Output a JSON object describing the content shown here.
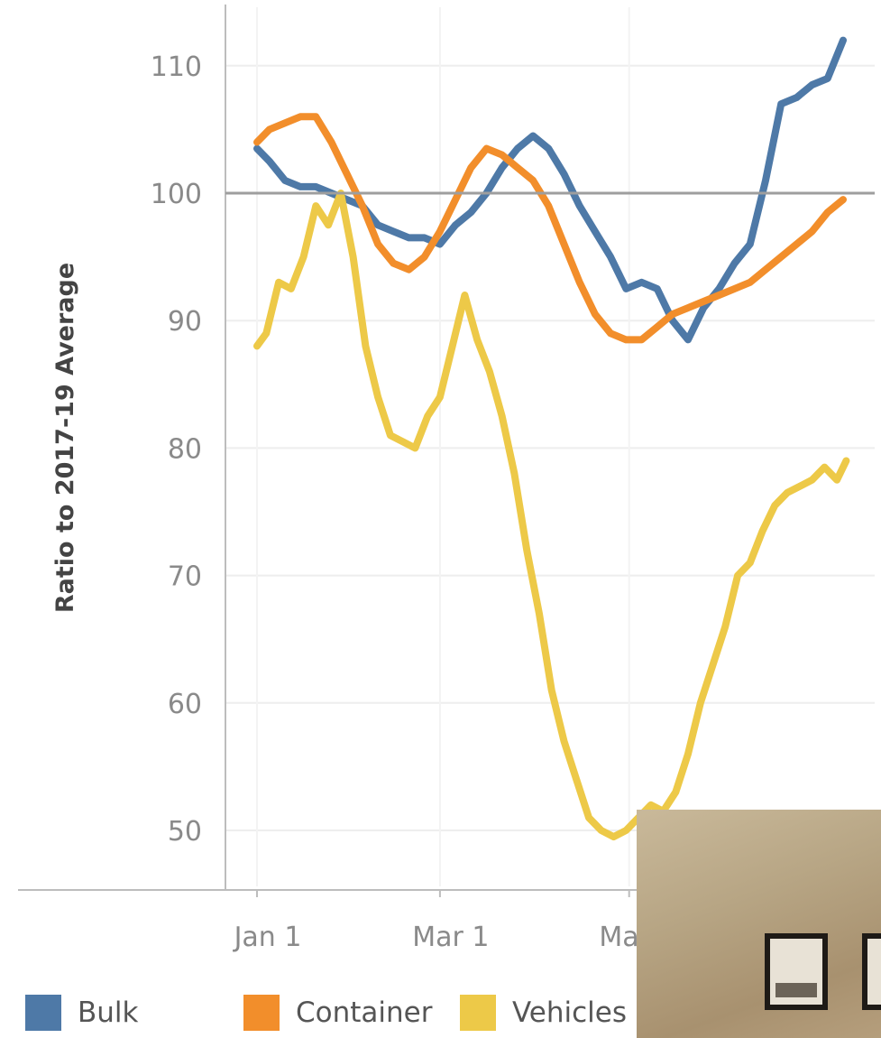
{
  "chart_data": {
    "type": "line",
    "title": "",
    "xlabel": "",
    "ylabel": "Ratio to 2017-19 Average",
    "ylim": [
      45,
      116
    ],
    "yticks": [
      50,
      60,
      70,
      80,
      90,
      100,
      110
    ],
    "x_tick_labels": [
      "Jan 1",
      "Mar 1",
      "May 1"
    ],
    "x_tick_dates": [
      "2021-01-01",
      "2021-03-01",
      "2021-05-01"
    ],
    "x_range": [
      "2020-12-25",
      "2021-07-15"
    ],
    "reference_line": 100,
    "grid": true,
    "legend_position": "bottom",
    "series": [
      {
        "name": "Bulk",
        "color": "#4e79a7",
        "x": [
          "2021-01-01",
          "2021-01-05",
          "2021-01-10",
          "2021-01-15",
          "2021-01-20",
          "2021-01-25",
          "2021-01-30",
          "2021-02-04",
          "2021-02-09",
          "2021-02-14",
          "2021-02-19",
          "2021-02-24",
          "2021-03-01",
          "2021-03-06",
          "2021-03-11",
          "2021-03-16",
          "2021-03-21",
          "2021-03-26",
          "2021-03-31",
          "2021-04-05",
          "2021-04-10",
          "2021-04-15",
          "2021-04-20",
          "2021-04-25",
          "2021-04-30",
          "2021-05-05",
          "2021-05-10",
          "2021-05-15",
          "2021-05-20",
          "2021-05-25",
          "2021-05-30",
          "2021-06-04",
          "2021-06-09",
          "2021-06-14",
          "2021-06-19",
          "2021-06-24",
          "2021-06-29",
          "2021-07-04",
          "2021-07-09"
        ],
        "values": [
          103.5,
          102.5,
          101,
          100.5,
          100.5,
          100,
          99.5,
          99,
          97.5,
          97,
          96.5,
          96.5,
          96,
          97.5,
          98.5,
          100,
          102,
          103.5,
          104.5,
          103.5,
          101.5,
          99,
          97,
          95,
          92.5,
          93,
          92.5,
          90,
          88.5,
          91,
          92.5,
          94.5,
          96,
          101,
          107,
          107.5,
          108.5,
          109,
          112
        ]
      },
      {
        "name": "Container",
        "color": "#f28e2b",
        "x": [
          "2021-01-01",
          "2021-01-05",
          "2021-01-10",
          "2021-01-15",
          "2021-01-20",
          "2021-01-25",
          "2021-01-30",
          "2021-02-04",
          "2021-02-09",
          "2021-02-14",
          "2021-02-19",
          "2021-02-24",
          "2021-03-01",
          "2021-03-06",
          "2021-03-11",
          "2021-03-16",
          "2021-03-21",
          "2021-03-26",
          "2021-03-31",
          "2021-04-05",
          "2021-04-10",
          "2021-04-15",
          "2021-04-20",
          "2021-04-25",
          "2021-04-30",
          "2021-05-05",
          "2021-05-10",
          "2021-05-15",
          "2021-05-20",
          "2021-05-25",
          "2021-05-30",
          "2021-06-04",
          "2021-06-09",
          "2021-06-14",
          "2021-06-19",
          "2021-06-24",
          "2021-06-29",
          "2021-07-04",
          "2021-07-09"
        ],
        "values": [
          104,
          105,
          105.5,
          106,
          106,
          104,
          101.5,
          99,
          96,
          94.5,
          94,
          95,
          97,
          99.5,
          102,
          103.5,
          103,
          102,
          101,
          99,
          96,
          93,
          90.5,
          89,
          88.5,
          88.5,
          89.5,
          90.5,
          91,
          91.5,
          92,
          92.5,
          93,
          94,
          95,
          96,
          97,
          98.5,
          99.5
        ]
      },
      {
        "name": "Vehicles",
        "color": "#edc948",
        "x": [
          "2021-01-01",
          "2021-01-04",
          "2021-01-08",
          "2021-01-12",
          "2021-01-16",
          "2021-01-20",
          "2021-01-24",
          "2021-01-28",
          "2021-02-01",
          "2021-02-05",
          "2021-02-09",
          "2021-02-13",
          "2021-02-17",
          "2021-02-21",
          "2021-02-25",
          "2021-03-01",
          "2021-03-05",
          "2021-03-09",
          "2021-03-13",
          "2021-03-17",
          "2021-03-21",
          "2021-03-25",
          "2021-03-29",
          "2021-04-02",
          "2021-04-06",
          "2021-04-10",
          "2021-04-14",
          "2021-04-18",
          "2021-04-22",
          "2021-04-26",
          "2021-04-30",
          "2021-05-04",
          "2021-05-08",
          "2021-05-12",
          "2021-05-16",
          "2021-05-20",
          "2021-05-24",
          "2021-05-28",
          "2021-06-01",
          "2021-06-05",
          "2021-06-09",
          "2021-06-13",
          "2021-06-17",
          "2021-06-21",
          "2021-06-25",
          "2021-06-29",
          "2021-07-03",
          "2021-07-07",
          "2021-07-10"
        ],
        "values": [
          88,
          89,
          93,
          92.5,
          95,
          99,
          97.5,
          100,
          95,
          88,
          84,
          81,
          80.5,
          80,
          82.5,
          84,
          88,
          92,
          88.5,
          86,
          82.5,
          78,
          72,
          67,
          61,
          57,
          54,
          51,
          50,
          49.5,
          50,
          51,
          52,
          51.5,
          53,
          56,
          60,
          63,
          66,
          70,
          71,
          73.5,
          75.5,
          76.5,
          77,
          77.5,
          78.5,
          77.5,
          79
        ]
      }
    ]
  },
  "legend": {
    "items": [
      {
        "label": "Bulk",
        "color": "#4e79a7"
      },
      {
        "label": "Container",
        "color": "#f28e2b"
      },
      {
        "label": "Vehicles",
        "color": "#edc948"
      }
    ]
  },
  "colors": {
    "grid": "#eeeeee",
    "axis": "#bdbdbd",
    "reference_line": "#9e9e9e"
  }
}
